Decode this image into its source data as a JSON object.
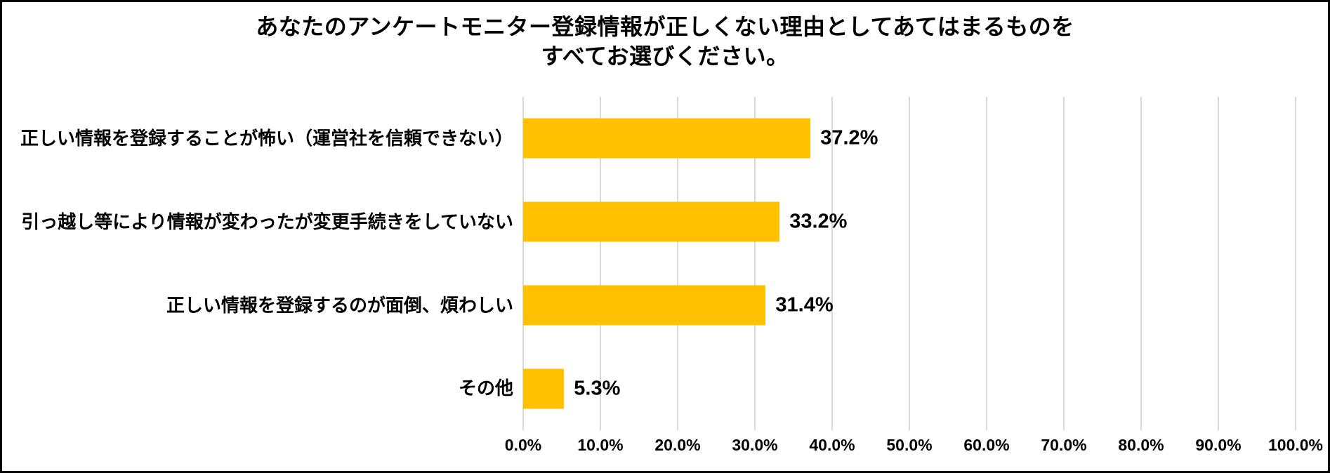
{
  "chart": {
    "title_line1": "あなたのアンケートモニター登録情報が正しくない理由としてあてはまるものを",
    "title_line2": "すべてお選びください。"
  },
  "chart_data": {
    "type": "bar",
    "orientation": "horizontal",
    "title": "あなたのアンケートモニター登録情報が正しくない理由としてあてはまるものを すべてお選びください。",
    "categories": [
      "正しい情報を登録することが怖い（運営社を信頼できない）",
      "引っ越し等により情報が変わったが変更手続きをしていない",
      "正しい情報を登録するのが面倒、煩わしい",
      "その他"
    ],
    "values": [
      37.2,
      33.2,
      31.4,
      5.3
    ],
    "data_labels": [
      "37.2%",
      "33.2%",
      "31.4%",
      "5.3%"
    ],
    "xlabel": "",
    "ylabel": "",
    "xlim": [
      0,
      100
    ],
    "x_ticks": [
      {
        "label": "0.0%",
        "value": 0
      },
      {
        "label": "10.0%",
        "value": 10
      },
      {
        "label": "20.0%",
        "value": 20
      },
      {
        "label": "30.0%",
        "value": 30
      },
      {
        "label": "40.0%",
        "value": 40
      },
      {
        "label": "50.0%",
        "value": 50
      },
      {
        "label": "60.0%",
        "value": 60
      },
      {
        "label": "70.0%",
        "value": 70
      },
      {
        "label": "80.0%",
        "value": 80
      },
      {
        "label": "90.0%",
        "value": 90
      },
      {
        "label": "100.0%",
        "value": 100
      }
    ],
    "grid": true,
    "legend": false,
    "bar_color": "#FFC000",
    "gridline_color": "#D9D9D9",
    "text_color": "#000000",
    "border_color": "#000000",
    "background": "#FFFFFF"
  }
}
